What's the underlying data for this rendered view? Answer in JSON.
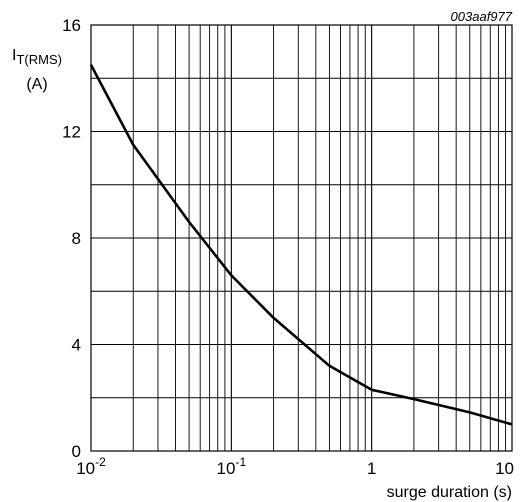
{
  "figure_code": "003aaf977",
  "chart_data": {
    "type": "line",
    "x_scale": "log",
    "xlim": [
      0.01,
      10
    ],
    "ylim": [
      0,
      16
    ],
    "grid": true,
    "ylabel": {
      "main": "I",
      "subscript": "T(RMS)",
      "unit": "(A)"
    },
    "xlabel": "surge duration (s)",
    "x_ticks": [
      {
        "value": 0.01,
        "base": "10",
        "exp": "-2"
      },
      {
        "value": 0.1,
        "base": "10",
        "exp": "-1"
      },
      {
        "value": 1,
        "base": "1",
        "exp": ""
      },
      {
        "value": 10,
        "base": "10",
        "exp": ""
      }
    ],
    "y_ticks": [
      0,
      4,
      8,
      12,
      16
    ],
    "series": [
      {
        "x": [
          0.01,
          0.02,
          0.05,
          0.1,
          0.2,
          0.5,
          1,
          2,
          5,
          10
        ],
        "y": [
          14.5,
          11.5,
          8.6,
          6.6,
          5.0,
          3.2,
          2.3,
          1.95,
          1.45,
          1.0
        ]
      }
    ]
  }
}
